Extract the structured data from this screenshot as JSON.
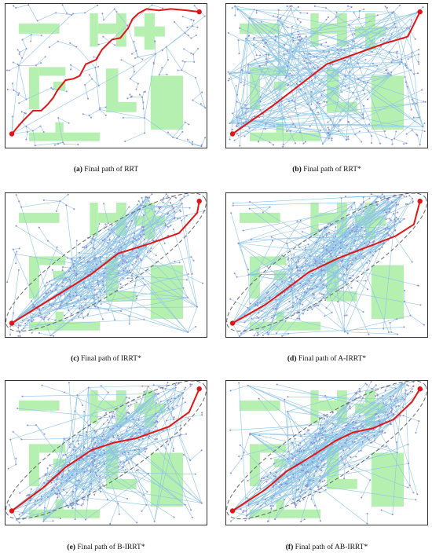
{
  "figure": {
    "panels": [
      {
        "id": "a",
        "method": "RRT",
        "label": "(a)",
        "caption": "Final path of RRT",
        "ellipse": false,
        "path": [
          [
            0.035,
            0.9
          ],
          [
            0.09,
            0.81
          ],
          [
            0.14,
            0.74
          ],
          [
            0.18,
            0.74
          ],
          [
            0.21,
            0.7
          ],
          [
            0.24,
            0.65
          ],
          [
            0.26,
            0.6
          ],
          [
            0.3,
            0.53
          ],
          [
            0.34,
            0.52
          ],
          [
            0.37,
            0.5
          ],
          [
            0.4,
            0.42
          ],
          [
            0.45,
            0.39
          ],
          [
            0.48,
            0.32
          ],
          [
            0.53,
            0.25
          ],
          [
            0.57,
            0.24
          ],
          [
            0.61,
            0.17
          ],
          [
            0.63,
            0.11
          ],
          [
            0.66,
            0.07
          ],
          [
            0.7,
            0.04
          ],
          [
            0.76,
            0.05
          ],
          [
            0.82,
            0.04
          ],
          [
            0.9,
            0.05
          ],
          [
            0.96,
            0.06
          ]
        ]
      },
      {
        "id": "b",
        "method": "RRT*",
        "label": "(b)",
        "caption": "Final path of RRT*",
        "ellipse": false,
        "path": [
          [
            0.035,
            0.9
          ],
          [
            0.23,
            0.71
          ],
          [
            0.5,
            0.42
          ],
          [
            0.6,
            0.37
          ],
          [
            0.78,
            0.28
          ],
          [
            0.9,
            0.23
          ],
          [
            0.96,
            0.06
          ]
        ]
      },
      {
        "id": "c",
        "method": "IRRT*",
        "label": "(c)",
        "caption": "Final path of IRRT*",
        "ellipse": true,
        "path": [
          [
            0.035,
            0.9
          ],
          [
            0.22,
            0.74
          ],
          [
            0.43,
            0.56
          ],
          [
            0.56,
            0.42
          ],
          [
            0.72,
            0.35
          ],
          [
            0.86,
            0.28
          ],
          [
            0.95,
            0.14
          ],
          [
            0.96,
            0.06
          ]
        ]
      },
      {
        "id": "d",
        "method": "A-IRRT*",
        "label": "(d)",
        "caption": "Final path of A-IRRT*",
        "ellipse": true,
        "path": [
          [
            0.035,
            0.9
          ],
          [
            0.2,
            0.77
          ],
          [
            0.41,
            0.55
          ],
          [
            0.56,
            0.45
          ],
          [
            0.73,
            0.36
          ],
          [
            0.84,
            0.3
          ],
          [
            0.93,
            0.22
          ],
          [
            0.96,
            0.06
          ]
        ]
      },
      {
        "id": "e",
        "method": "B-IRRT*",
        "label": "(e)",
        "caption": "Final path of B-IRRT*",
        "ellipse": true,
        "path": [
          [
            0.035,
            0.9
          ],
          [
            0.19,
            0.74
          ],
          [
            0.3,
            0.6
          ],
          [
            0.43,
            0.48
          ],
          [
            0.54,
            0.43
          ],
          [
            0.65,
            0.4
          ],
          [
            0.81,
            0.32
          ],
          [
            0.91,
            0.22
          ],
          [
            0.96,
            0.06
          ]
        ]
      },
      {
        "id": "f",
        "method": "AB-IRRT*",
        "label": "(f)",
        "caption": "Final path of AB-IRRT*",
        "ellipse": true,
        "path": [
          [
            0.035,
            0.9
          ],
          [
            0.2,
            0.75
          ],
          [
            0.3,
            0.63
          ],
          [
            0.43,
            0.52
          ],
          [
            0.54,
            0.42
          ],
          [
            0.63,
            0.36
          ],
          [
            0.73,
            0.33
          ],
          [
            0.83,
            0.27
          ],
          [
            0.92,
            0.15
          ],
          [
            0.96,
            0.06
          ]
        ]
      }
    ],
    "colors": {
      "obstacle": "#b6f0b0",
      "tree": "#8cc3e6",
      "node": "#8f8ad1",
      "path": "#e01515",
      "ellipse": "#666666",
      "border": "#333333"
    }
  }
}
